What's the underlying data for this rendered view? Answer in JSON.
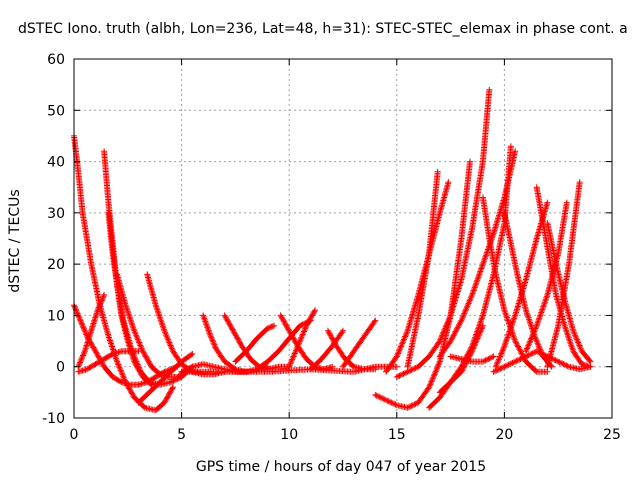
{
  "chart_data": {
    "type": "scatter",
    "title": "dSTEC Iono. truth (albh, Lon=236, Lat=48, h=31): STEC-STEC_elemax in phase cont. a",
    "xlabel": "GPS time / hours of day 047 of year 2015",
    "ylabel": "dSTEC  / TECUs",
    "xlim": [
      0,
      25
    ],
    "ylim": [
      -10,
      60
    ],
    "xticks": [
      "0",
      "5",
      "10",
      "15",
      "20",
      "25"
    ],
    "yticks": [
      "-10",
      "0",
      "10",
      "20",
      "30",
      "40",
      "50",
      "60"
    ],
    "grid": true,
    "marker": "+",
    "color": "#ff0000",
    "series": [
      {
        "x": [
          0.0,
          0.2,
          0.4,
          0.8,
          1.2,
          1.6,
          2.0,
          2.4,
          2.8,
          3.3,
          3.8,
          4.2,
          4.6
        ],
        "values": [
          45,
          38,
          30,
          20,
          12,
          6,
          1,
          -3,
          -6,
          -8,
          -8.5,
          -7,
          -4
        ]
      },
      {
        "x": [
          0.0,
          0.3,
          0.6,
          1.0,
          1.4,
          1.8,
          2.2,
          2.6,
          3.0,
          3.4,
          3.8,
          4.2,
          4.8
        ],
        "values": [
          12,
          9,
          6,
          3,
          0,
          -2,
          -3,
          -3.5,
          -3.5,
          -3,
          -2,
          -1,
          0
        ]
      },
      {
        "x": [
          1.4,
          1.6,
          1.8,
          2.0,
          2.3,
          2.7,
          3.1,
          3.5,
          4.0,
          4.5,
          5.0,
          5.5
        ],
        "values": [
          42,
          32,
          24,
          16,
          9,
          3,
          -1,
          -3,
          -3.5,
          -3,
          -2,
          0
        ]
      },
      {
        "x": [
          0.2,
          0.6,
          1.0,
          1.4,
          1.8,
          2.2,
          2.6,
          3.0
        ],
        "values": [
          -1,
          -0.5,
          0.5,
          1.5,
          2.5,
          3,
          3,
          3
        ]
      },
      {
        "x": [
          0.2,
          0.5,
          0.8,
          1.1,
          1.4
        ],
        "values": [
          0,
          3,
          7,
          11,
          14
        ]
      },
      {
        "x": [
          1.6,
          1.8,
          2.0,
          2.2,
          2.5,
          2.8,
          3.2,
          3.6
        ],
        "values": [
          30,
          22,
          16,
          10,
          5,
          1,
          -2,
          -3.5
        ]
      },
      {
        "x": [
          2.0,
          2.4,
          2.8,
          3.2,
          3.6,
          4.0,
          4.4,
          4.8,
          5.2
        ],
        "values": [
          18,
          12,
          7,
          3,
          0,
          -1.5,
          -2,
          -2,
          -1
        ]
      },
      {
        "x": [
          3.4,
          3.8,
          4.2,
          4.6,
          5.0,
          5.5,
          6.0,
          6.5,
          7.0
        ],
        "values": [
          18,
          12,
          7,
          3,
          0.5,
          -1,
          -1.5,
          -1.5,
          -1
        ]
      },
      {
        "x": [
          3.0,
          3.5,
          4.0,
          4.5,
          5.0,
          5.5
        ],
        "values": [
          -7,
          -5,
          -3,
          -1,
          1,
          2.5
        ]
      },
      {
        "x": [
          5.0,
          5.5,
          6.0,
          6.5,
          7.0,
          7.5,
          8.0
        ],
        "values": [
          -1,
          0,
          0.5,
          0,
          -0.5,
          -1,
          -1
        ]
      },
      {
        "x": [
          6.0,
          6.3,
          6.6,
          7.0,
          7.5,
          8.0,
          8.5,
          9.0
        ],
        "values": [
          10,
          6.5,
          3.5,
          1,
          -0.5,
          -1,
          -0.5,
          0
        ]
      },
      {
        "x": [
          7.0,
          7.4,
          7.8,
          8.2,
          8.6,
          9.0,
          9.5,
          10.0
        ],
        "values": [
          10,
          7,
          4,
          1.5,
          0,
          -0.5,
          0,
          0
        ]
      },
      {
        "x": [
          7.5,
          8.0,
          8.5,
          9.0,
          9.3
        ],
        "values": [
          1,
          3,
          5.5,
          7.5,
          8
        ]
      },
      {
        "x": [
          8.5,
          9.0,
          9.5,
          10.0,
          10.5,
          11.0
        ],
        "values": [
          -0.5,
          1,
          3,
          5.5,
          8,
          9
        ]
      },
      {
        "x": [
          9.6,
          10.0,
          10.4,
          10.8,
          11.2,
          11.6,
          12.0
        ],
        "values": [
          10,
          7,
          4,
          1.5,
          0,
          -0.5,
          0
        ]
      },
      {
        "x": [
          10.0,
          10.4,
          10.8,
          11.2
        ],
        "values": [
          0,
          4,
          8,
          11
        ]
      },
      {
        "x": [
          11.0,
          11.5,
          12.0,
          12.5
        ],
        "values": [
          -0.5,
          1.5,
          4,
          7
        ]
      },
      {
        "x": [
          11.8,
          12.2,
          12.6,
          13.0,
          13.5,
          14.0
        ],
        "values": [
          7,
          4,
          1.5,
          0,
          -0.5,
          -0.5
        ]
      },
      {
        "x": [
          12.5,
          13.0,
          13.5,
          14.0
        ],
        "values": [
          0,
          3,
          6,
          9
        ]
      },
      {
        "x": [
          5.0,
          7.0,
          9.0,
          11.0,
          13.0,
          14.0,
          15.0
        ],
        "values": [
          -1,
          -1,
          -1,
          -0.5,
          -1,
          0,
          0
        ]
      },
      {
        "x": [
          14.0,
          14.5,
          15.0,
          15.5,
          16.0,
          16.5,
          17.0,
          17.5,
          18.0,
          18.4
        ],
        "values": [
          -5.5,
          -6.5,
          -7.5,
          -8,
          -7,
          -4,
          1,
          10,
          25,
          40
        ]
      },
      {
        "x": [
          14.5,
          15.0,
          15.5,
          16.0,
          16.5,
          17.0,
          17.4
        ],
        "values": [
          -1,
          2,
          7,
          14,
          22,
          30,
          36
        ]
      },
      {
        "x": [
          15.5,
          16.0,
          16.5,
          16.9
        ],
        "values": [
          0,
          10,
          22,
          38
        ]
      },
      {
        "x": [
          15.0,
          15.5,
          16.0,
          16.5,
          17.0,
          17.5,
          18.0,
          18.5,
          19.0,
          19.3
        ],
        "values": [
          -2,
          -1,
          0,
          2,
          5,
          10,
          17,
          27,
          40,
          54
        ]
      },
      {
        "x": [
          16.5,
          17.0,
          17.5,
          18.0,
          18.5,
          19.0,
          19.5,
          20.0,
          20.3
        ],
        "values": [
          -8,
          -6,
          -3,
          0,
          4,
          10,
          18,
          28,
          43
        ]
      },
      {
        "x": [
          17.0,
          17.5,
          18.0,
          18.5,
          19.0
        ],
        "values": [
          -5,
          -3,
          -1,
          3,
          8
        ]
      },
      {
        "x": [
          17.0,
          17.5,
          18.0,
          18.5,
          19.0,
          19.5,
          20.0,
          20.5
        ],
        "values": [
          2,
          5,
          9,
          14,
          20,
          26,
          33,
          42
        ]
      },
      {
        "x": [
          19.0,
          19.3,
          19.6,
          20.0,
          20.5,
          21.0,
          21.5,
          22.0
        ],
        "values": [
          33,
          25,
          18,
          11,
          5,
          1,
          -1,
          -1
        ]
      },
      {
        "x": [
          20.0,
          20.3,
          20.6,
          21.0,
          21.4,
          21.8,
          22.2
        ],
        "values": [
          30,
          24,
          18,
          11,
          6,
          2,
          0
        ]
      },
      {
        "x": [
          19.6,
          20.0,
          20.5,
          21.0,
          21.5,
          22.0
        ],
        "values": [
          0,
          4,
          10,
          17,
          25,
          32
        ]
      },
      {
        "x": [
          21.5,
          21.8,
          22.1,
          22.4,
          22.8,
          23.2,
          23.6,
          24.0
        ],
        "values": [
          35,
          28,
          21,
          14,
          8,
          3,
          0.5,
          0
        ]
      },
      {
        "x": [
          22.0,
          22.4,
          22.8,
          23.2,
          23.6,
          24.0
        ],
        "values": [
          28,
          20,
          13,
          7,
          3,
          1
        ]
      },
      {
        "x": [
          21.0,
          21.5,
          22.0,
          22.5,
          22.9
        ],
        "values": [
          3,
          8,
          14,
          22,
          32
        ]
      },
      {
        "x": [
          22.0,
          22.5,
          23.0,
          23.5
        ],
        "values": [
          0,
          8,
          20,
          36
        ]
      },
      {
        "x": [
          19.5,
          20.0,
          20.5,
          21.0,
          21.5,
          22.0,
          22.5,
          23.0,
          23.5,
          24.0
        ],
        "values": [
          -1,
          0,
          1,
          2,
          3,
          2,
          1,
          0,
          -0.5,
          0
        ]
      },
      {
        "x": [
          17.5,
          18.0,
          18.5,
          19.0,
          19.5
        ],
        "values": [
          2,
          1.5,
          1,
          1,
          2
        ]
      }
    ]
  }
}
